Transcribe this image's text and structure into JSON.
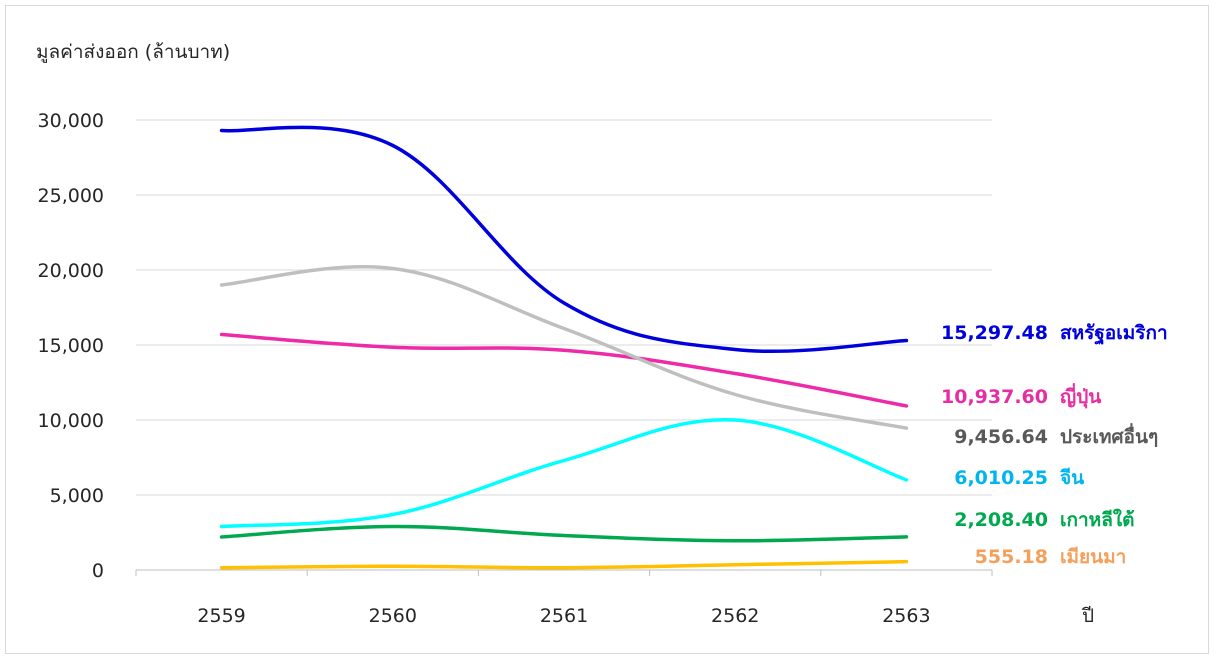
{
  "chart_data": {
    "type": "line",
    "title": "",
    "ylabel": "มูลค่าส่งออก (ล้านบาท)",
    "xlabel": "ปี",
    "categories": [
      "2559",
      "2560",
      "2561",
      "2562",
      "2563"
    ],
    "ylim": [
      0,
      30000
    ],
    "yticks": [
      0,
      5000,
      10000,
      15000,
      20000,
      25000,
      30000
    ],
    "ytick_labels": [
      "0",
      "5,000",
      "10,000",
      "15,000",
      "20,000",
      "25,000",
      "30,000"
    ],
    "grid": true,
    "legend": "end-of-line labels",
    "series": [
      {
        "name": "สหรัฐอเมริกา",
        "color": "#0000dd",
        "label_color": "#0000dd",
        "end_label": "15,297.48",
        "values": [
          29300,
          28300,
          17800,
          14700,
          15297.48
        ]
      },
      {
        "name": "ญี่ปุ่น",
        "color": "#ee2aa8",
        "label_color": "#e62ea4",
        "end_label": "10,937.60",
        "values": [
          15700,
          14850,
          14650,
          13100,
          10937.6
        ]
      },
      {
        "name": "ประเทศอื่นๆ",
        "color": "#bfbfbf",
        "label_color": "#595959",
        "end_label": "9,456.64",
        "values": [
          19000,
          20100,
          16100,
          11700,
          9456.64
        ]
      },
      {
        "name": "จีน",
        "color": "#00ffff",
        "label_color": "#00b4f0",
        "end_label": "6,010.25",
        "values": [
          2900,
          3700,
          7300,
          10000,
          6010.25
        ]
      },
      {
        "name": "เกาหลีใต้",
        "color": "#00a84f",
        "label_color": "#00a84f",
        "end_label": "2,208.40",
        "values": [
          2200,
          2900,
          2300,
          1950,
          2208.4
        ]
      },
      {
        "name": "เมียนมา",
        "color": "#ffc000",
        "label_color": "#f5a05a",
        "end_label": "555.18",
        "values": [
          150,
          250,
          150,
          350,
          555.18
        ]
      }
    ]
  }
}
